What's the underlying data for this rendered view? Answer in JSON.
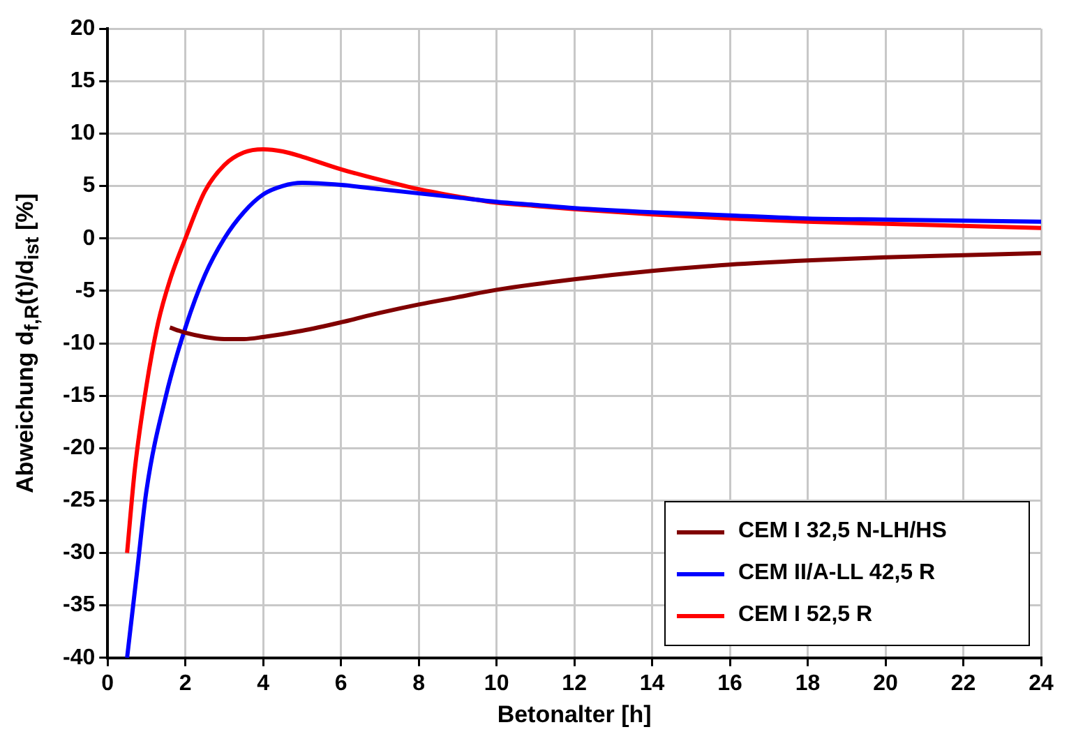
{
  "chart_data": {
    "type": "line",
    "xlabel": "Betonalter [h]",
    "ylabel": "Abweichung d$_{f,R}$(t)/d$_{ist}$ [%]",
    "xlim": [
      0,
      24
    ],
    "xticks": [
      0,
      2,
      4,
      6,
      8,
      10,
      12,
      14,
      16,
      18,
      20,
      22,
      24
    ],
    "ylim": [
      -40,
      20
    ],
    "yticks": [
      -40,
      -35,
      -30,
      -25,
      -20,
      -15,
      -10,
      -5,
      0,
      5,
      10,
      15,
      20
    ],
    "grid": true,
    "legend": "bottom right",
    "marker": "none",
    "line_style": "solid",
    "series": [
      {
        "name": "CEM I 32,5 N-LH/HS",
        "color": "#800000",
        "x": [
          1.6,
          2,
          2.5,
          3,
          3.5,
          4,
          5,
          6,
          7,
          8,
          9,
          10,
          12,
          14,
          16,
          18,
          20,
          22,
          24
        ],
        "values": [
          -8.5,
          -9,
          -9.4,
          -9.6,
          -9.6,
          -9.4,
          -8.8,
          -8,
          -7.1,
          -6.3,
          -5.6,
          -4.9,
          -3.9,
          -3.1,
          -2.5,
          -2.1,
          -1.8,
          -1.6,
          -1.4
        ]
      },
      {
        "name": "CEM II/A-LL 42,5 R",
        "color": "#0000ff",
        "x": [
          0.5,
          0.75,
          1,
          1.5,
          2,
          2.5,
          3,
          3.5,
          4,
          4.5,
          5,
          6,
          7,
          8,
          9,
          10,
          11,
          12,
          14,
          16,
          18,
          20,
          22,
          24
        ],
        "values": [
          -40,
          -32,
          -24,
          -15,
          -8.5,
          -3.5,
          0,
          2.5,
          4.2,
          5,
          5.3,
          5.1,
          4.7,
          4.3,
          3.9,
          3.5,
          3.2,
          2.9,
          2.5,
          2.2,
          1.9,
          1.8,
          1.7,
          1.6
        ]
      },
      {
        "name": "CEM I 52,5 R",
        "color": "#ff0000",
        "x": [
          0.5,
          0.7,
          1,
          1.3,
          1.6,
          2,
          2.5,
          3,
          3.5,
          4,
          4.5,
          5,
          6,
          7,
          8,
          9,
          10,
          11,
          12,
          14,
          16,
          18,
          20,
          22,
          24
        ],
        "values": [
          -30,
          -22,
          -14,
          -8,
          -4,
          0,
          4.5,
          7,
          8.2,
          8.5,
          8.3,
          7.8,
          6.6,
          5.6,
          4.7,
          4,
          3.4,
          3.1,
          2.8,
          2.3,
          1.9,
          1.6,
          1.4,
          1.2,
          1.0
        ]
      }
    ]
  }
}
